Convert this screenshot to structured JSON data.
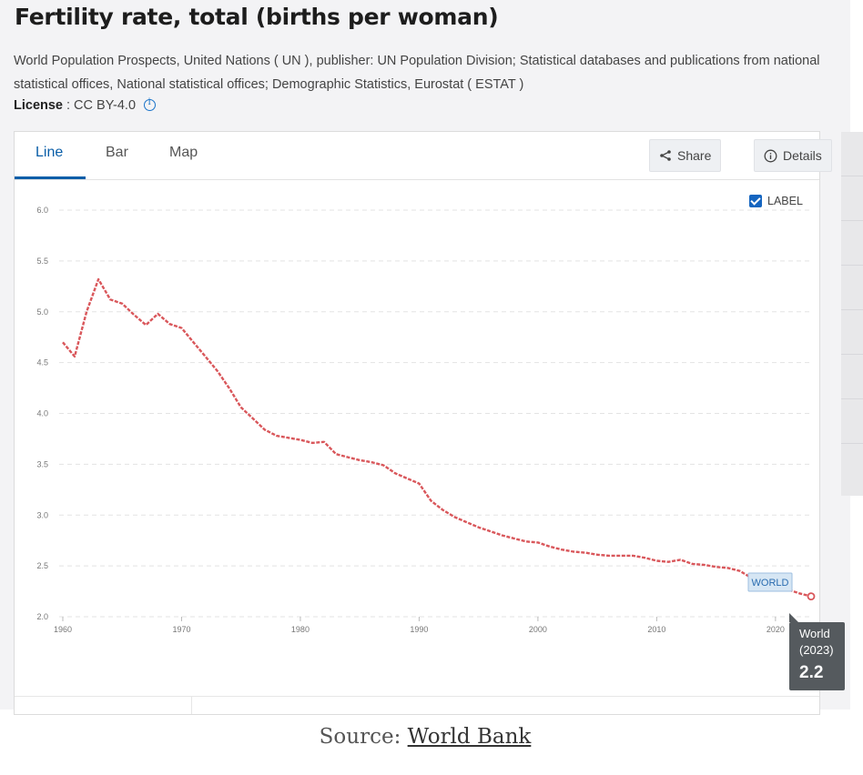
{
  "page": {
    "title": "Fertility rate, total (births per woman)",
    "source_text": "World Population Prospects, United Nations ( UN ), publisher: UN Population Division; Statistical databases and publications from national statistical offices, National statistical offices; Demographic Statistics, Eurostat ( ESTAT )",
    "license_label": "License",
    "license_value": ": CC BY-4.0"
  },
  "tabs": [
    {
      "label": "Line"
    },
    {
      "label": "Bar"
    },
    {
      "label": "Map"
    }
  ],
  "actions": {
    "share_label": "Share",
    "details_label": "Details"
  },
  "label_toggle": {
    "label": "LABEL",
    "checked": true
  },
  "tooltip": {
    "country": "World",
    "year": "(2023)",
    "value": "2.2"
  },
  "credit": {
    "prefix": "Source:",
    "link_text": "World Bank"
  },
  "colors": {
    "line": "#d9575b",
    "accent": "#0a5ea8",
    "label_box": "#d6e6f4"
  },
  "chart_data": {
    "type": "line",
    "title": "Fertility rate, total (births per woman)",
    "xlabel": "",
    "ylabel": "",
    "xlim": [
      1960,
      2023
    ],
    "ylim": [
      2.0,
      6.0
    ],
    "x_ticks": [
      1960,
      1970,
      1980,
      1990,
      2000,
      2010,
      2020
    ],
    "y_ticks": [
      "2.0",
      "2.5",
      "3.0",
      "3.5",
      "4.0",
      "4.5",
      "5.0",
      "5.5",
      "6.0"
    ],
    "grid": true,
    "series": [
      {
        "name": "WORLD",
        "x": [
          1960,
          1961,
          1962,
          1963,
          1964,
          1965,
          1966,
          1967,
          1968,
          1969,
          1970,
          1971,
          1972,
          1973,
          1974,
          1975,
          1976,
          1977,
          1978,
          1979,
          1980,
          1981,
          1982,
          1983,
          1984,
          1985,
          1986,
          1987,
          1988,
          1989,
          1990,
          1991,
          1992,
          1993,
          1994,
          1995,
          1996,
          1997,
          1998,
          1999,
          2000,
          2001,
          2002,
          2003,
          2004,
          2005,
          2006,
          2007,
          2008,
          2009,
          2010,
          2011,
          2012,
          2013,
          2014,
          2015,
          2016,
          2017,
          2018,
          2019,
          2020,
          2021,
          2022,
          2023
        ],
        "values": [
          4.7,
          4.56,
          5.0,
          5.32,
          5.12,
          5.08,
          4.97,
          4.87,
          4.98,
          4.88,
          4.84,
          4.7,
          4.56,
          4.42,
          4.25,
          4.06,
          3.95,
          3.84,
          3.78,
          3.76,
          3.74,
          3.71,
          3.72,
          3.6,
          3.57,
          3.54,
          3.52,
          3.49,
          3.41,
          3.36,
          3.31,
          3.14,
          3.05,
          2.98,
          2.93,
          2.88,
          2.84,
          2.8,
          2.77,
          2.74,
          2.73,
          2.69,
          2.66,
          2.64,
          2.63,
          2.61,
          2.6,
          2.6,
          2.6,
          2.58,
          2.55,
          2.54,
          2.56,
          2.52,
          2.51,
          2.49,
          2.48,
          2.45,
          2.38,
          2.35,
          2.3,
          2.27,
          2.23,
          2.2
        ]
      }
    ],
    "series_label": "WORLD"
  }
}
